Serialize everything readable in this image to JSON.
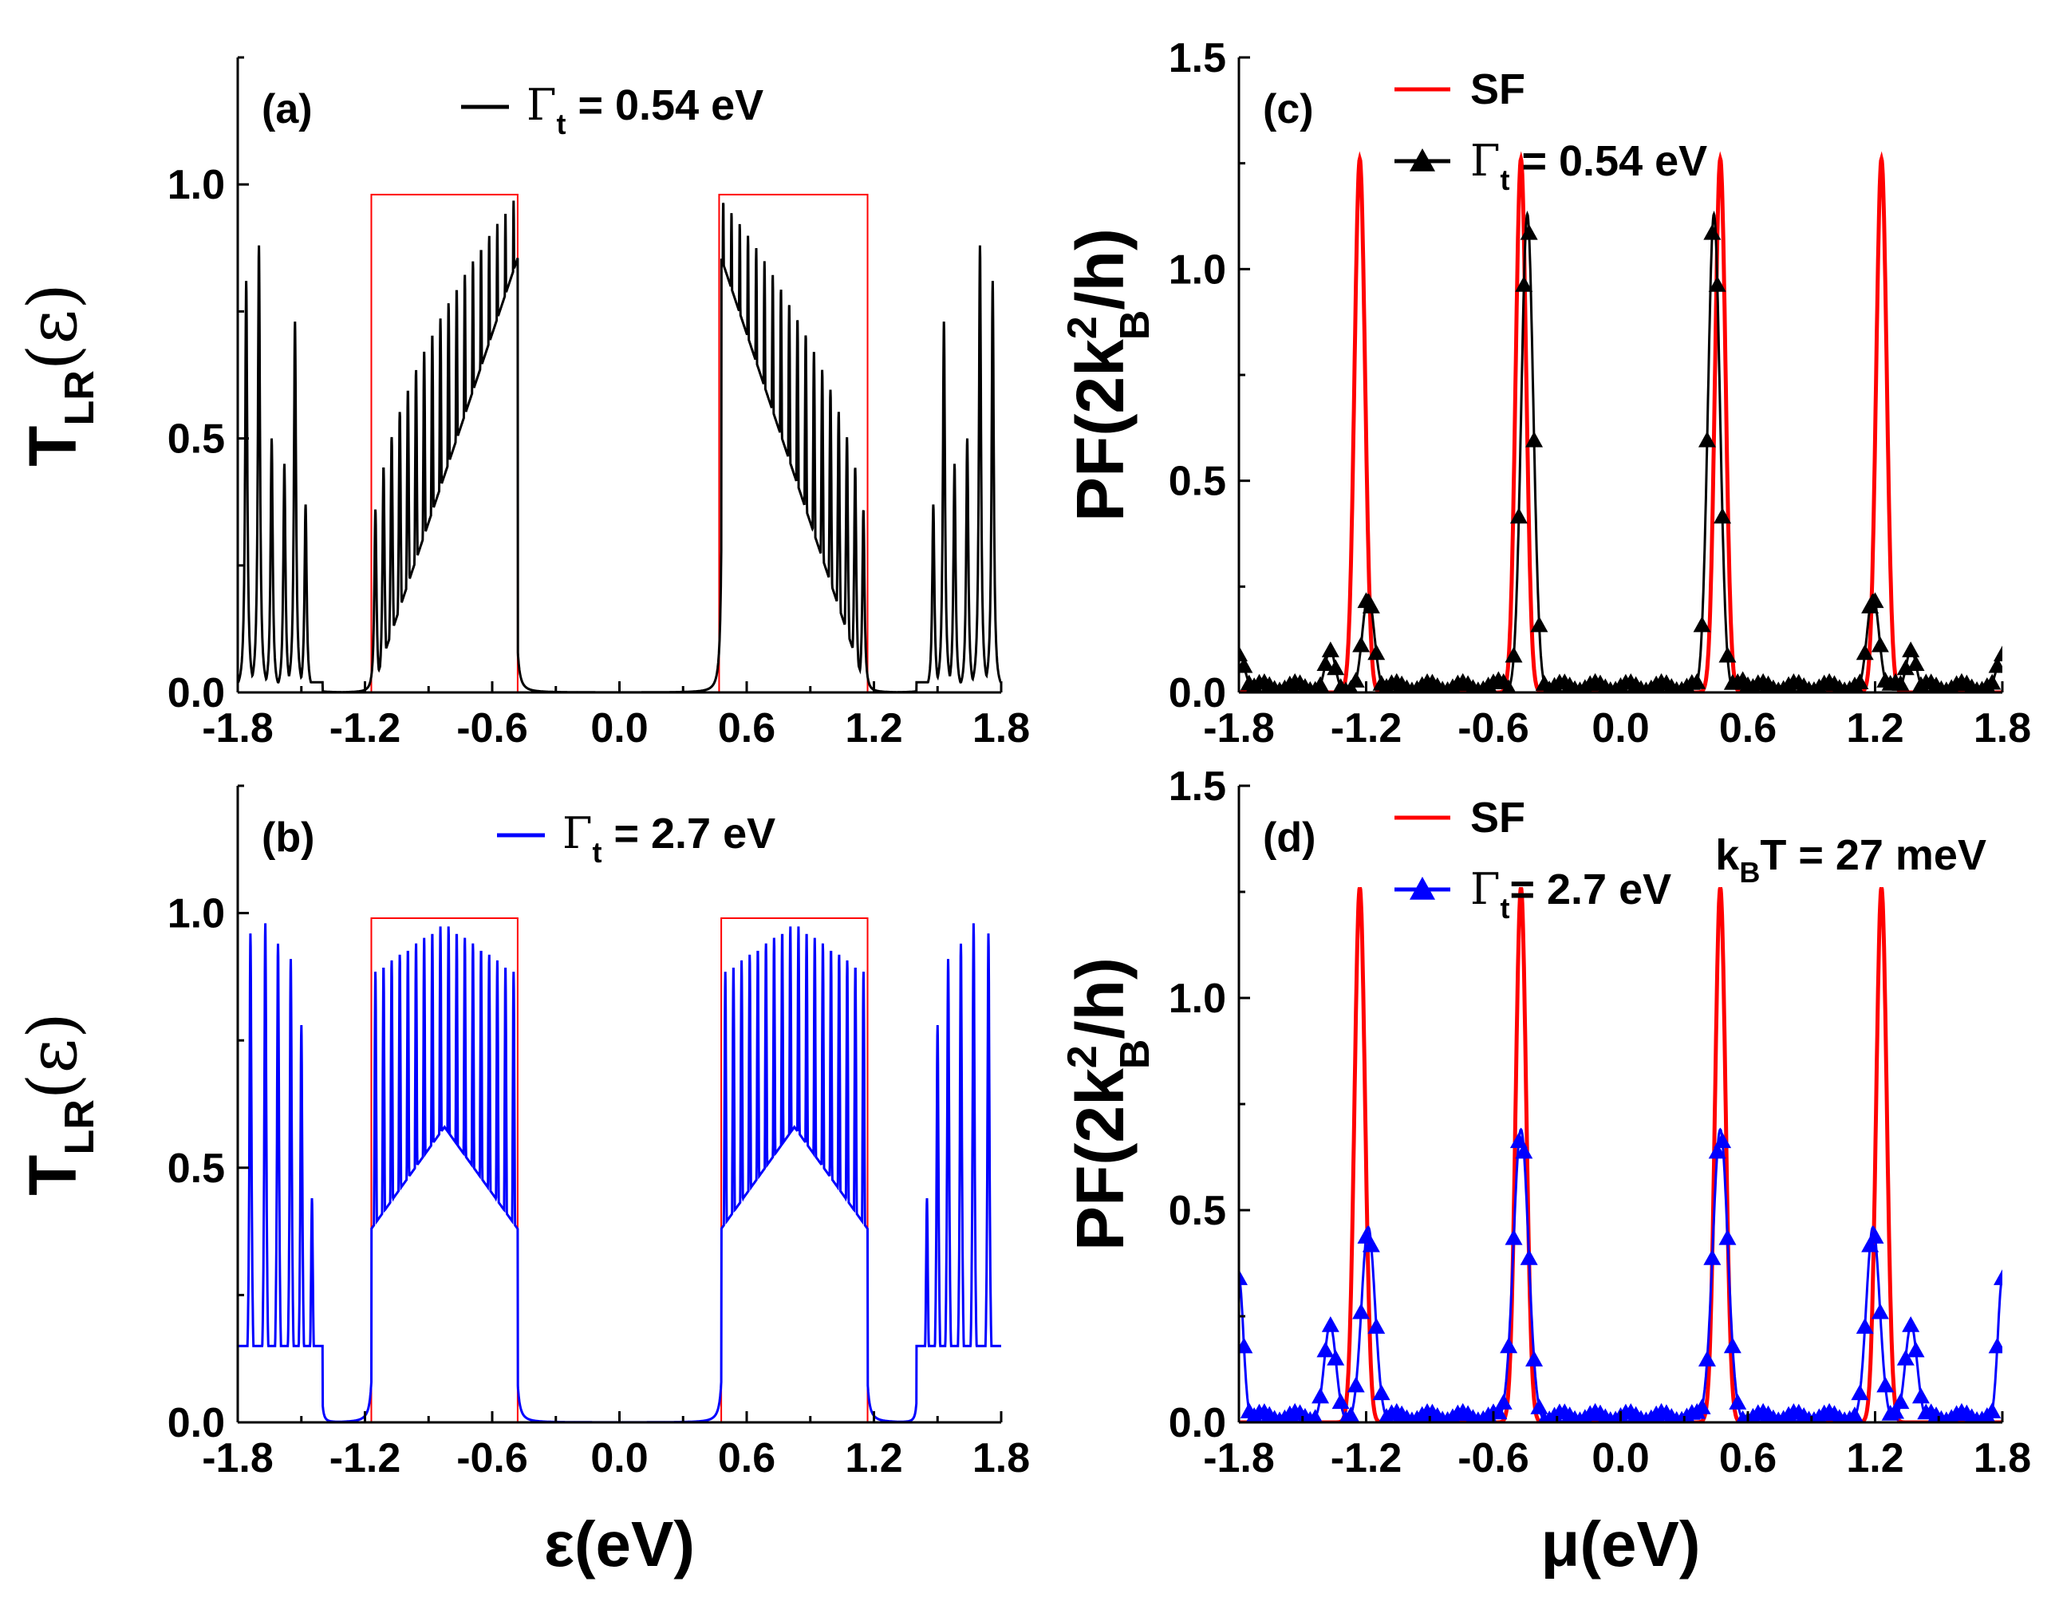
{
  "chart_data": [
    {
      "id": "a",
      "type": "line",
      "panel_label": "(a)",
      "xlim": [
        -1.8,
        1.8
      ],
      "ylim": [
        0,
        1.25
      ],
      "xticks": [
        "-1.8",
        "-1.2",
        "-0.6",
        "0.0",
        "0.6",
        "1.2",
        "1.8"
      ],
      "yticks": [
        "0.0",
        "0.5",
        "1.0"
      ],
      "ylabel_main": "T",
      "ylabel_sub": "LR",
      "ylabel_arg": "(ε)",
      "legend": [
        {
          "sym": "Γ",
          "sub": "t",
          "text": " = 0.54 eV",
          "color": "#000000"
        }
      ],
      "highlight_boxes": [
        {
          "x": [
            -1.17,
            -0.48
          ],
          "y": [
            0,
            0.98
          ]
        },
        {
          "x": [
            0.47,
            1.17
          ],
          "y": [
            0,
            0.98
          ]
        }
      ],
      "series": [
        {
          "name": "Γt = 0.54 eV",
          "color": "#000000",
          "outer_peaks": [
            {
              "x": -1.76,
              "y": 0.81
            },
            {
              "x": -1.7,
              "y": 0.88
            },
            {
              "x": -1.64,
              "y": 0.5
            },
            {
              "x": -1.58,
              "y": 0.45
            },
            {
              "x": -1.53,
              "y": 0.73
            },
            {
              "x": -1.48,
              "y": 0.37
            },
            {
              "x": 1.48,
              "y": 0.37
            },
            {
              "x": 1.53,
              "y": 0.73
            },
            {
              "x": 1.58,
              "y": 0.45
            },
            {
              "x": 1.64,
              "y": 0.5
            },
            {
              "x": 1.7,
              "y": 0.88
            },
            {
              "x": 1.76,
              "y": 0.81
            }
          ],
          "band_envelope": "high"
        }
      ]
    },
    {
      "id": "b",
      "type": "line",
      "panel_label": "(b)",
      "xlim": [
        -1.8,
        1.8
      ],
      "ylim": [
        0,
        1.25
      ],
      "xticks": [
        "-1.8",
        "-1.2",
        "-0.6",
        "0.0",
        "0.6",
        "1.2",
        "1.8"
      ],
      "yticks": [
        "0.0",
        "0.5",
        "1.0"
      ],
      "ylabel_main": "T",
      "ylabel_sub": "LR",
      "ylabel_arg": "(ε)",
      "xlabel": "ε(eV)",
      "legend": [
        {
          "sym": "Γ",
          "sub": "t",
          "text": " = 2.7 eV",
          "color": "#0000ff"
        }
      ],
      "highlight_boxes": [
        {
          "x": [
            -1.17,
            -0.48
          ],
          "y": [
            0,
            0.99
          ]
        },
        {
          "x": [
            0.48,
            1.17
          ],
          "y": [
            0,
            0.99
          ]
        }
      ],
      "series": [
        {
          "name": "Γt = 2.7 eV",
          "color": "#0000ff",
          "outer_peaks": [
            {
              "x": -1.74,
              "y": 0.96
            },
            {
              "x": -1.67,
              "y": 0.98
            },
            {
              "x": -1.61,
              "y": 0.94
            },
            {
              "x": -1.55,
              "y": 0.91
            },
            {
              "x": -1.5,
              "y": 0.78
            },
            {
              "x": -1.45,
              "y": 0.44
            },
            {
              "x": -1.41,
              "y": 0.14
            },
            {
              "x": 1.41,
              "y": 0.14
            },
            {
              "x": 1.45,
              "y": 0.44
            },
            {
              "x": 1.5,
              "y": 0.78
            },
            {
              "x": 1.55,
              "y": 0.91
            },
            {
              "x": 1.61,
              "y": 0.94
            },
            {
              "x": 1.67,
              "y": 0.98
            },
            {
              "x": 1.74,
              "y": 0.96
            }
          ],
          "band_envelope": "mid"
        }
      ]
    },
    {
      "id": "c",
      "type": "line",
      "panel_label": "(c)",
      "xlim": [
        -1.8,
        1.8
      ],
      "ylim": [
        0,
        1.5
      ],
      "xticks": [
        "-1.8",
        "-1.2",
        "-0.6",
        "0.0",
        "0.6",
        "1.2",
        "1.8"
      ],
      "yticks": [
        "0.0",
        "0.5",
        "1.0",
        "1.5"
      ],
      "ylabel_main": "PF(2k",
      "ylabel_sub": "B",
      "ylabel_sup": "2",
      "ylabel_tail": "/h)",
      "legend": [
        {
          "text": "SF",
          "color": "#ff0000",
          "marker": "line"
        },
        {
          "sym": "Γ",
          "sub": "t",
          "text": " = 0.54 eV",
          "color": "#000000",
          "marker": "triangle"
        }
      ],
      "series": [
        {
          "name": "SF",
          "color": "#ff0000",
          "peaks": [
            {
              "x": -1.23,
              "y": 1.26,
              "w": 0.035
            },
            {
              "x": -0.47,
              "y": 1.26,
              "w": 0.035
            },
            {
              "x": 0.47,
              "y": 1.26,
              "w": 0.035
            },
            {
              "x": 1.23,
              "y": 1.26,
              "w": 0.035
            }
          ]
        },
        {
          "name": "Γt = 0.54 eV",
          "color": "#000000",
          "marker": "triangle",
          "peaks": [
            {
              "x": -1.8,
              "y": 0.09,
              "w": 0.04
            },
            {
              "x": -1.37,
              "y": 0.1,
              "w": 0.035
            },
            {
              "x": -1.19,
              "y": 0.23,
              "w": 0.04
            },
            {
              "x": -0.57,
              "y": 0.03,
              "w": 0.04
            },
            {
              "x": -0.44,
              "y": 1.13,
              "w": 0.04
            },
            {
              "x": 0.44,
              "y": 1.13,
              "w": 0.04
            },
            {
              "x": 0.57,
              "y": 0.03,
              "w": 0.04
            },
            {
              "x": 1.19,
              "y": 0.23,
              "w": 0.04
            },
            {
              "x": 1.37,
              "y": 0.1,
              "w": 0.035
            },
            {
              "x": 1.8,
              "y": 0.09,
              "w": 0.04
            }
          ]
        }
      ]
    },
    {
      "id": "d",
      "type": "line",
      "panel_label": "(d)",
      "xlim": [
        -1.8,
        1.8
      ],
      "ylim": [
        0,
        1.5
      ],
      "xticks": [
        "-1.8",
        "-1.2",
        "-0.6",
        "0.0",
        "0.6",
        "1.2",
        "1.8"
      ],
      "yticks": [
        "0.0",
        "0.5",
        "1.0",
        "1.5"
      ],
      "ylabel_main": "PF(2k",
      "ylabel_sub": "B",
      "ylabel_sup": "2",
      "ylabel_tail": "/h)",
      "xlabel": "μ(eV)",
      "annotation": {
        "main": "k",
        "sub": "B",
        "tail": "T = 27 meV"
      },
      "legend": [
        {
          "text": "SF",
          "color": "#ff0000",
          "marker": "line"
        },
        {
          "sym": "Γ",
          "sub": "t",
          "text": "= 2.7 eV",
          "color": "#0000ff",
          "marker": "triangle"
        }
      ],
      "series": [
        {
          "name": "SF",
          "color": "#ff0000",
          "peaks": [
            {
              "x": -1.23,
              "y": 1.26,
              "w": 0.035
            },
            {
              "x": -0.47,
              "y": 1.26,
              "w": 0.035
            },
            {
              "x": 0.47,
              "y": 1.26,
              "w": 0.035
            },
            {
              "x": 1.23,
              "y": 1.26,
              "w": 0.035
            }
          ]
        },
        {
          "name": "Γt = 2.7 eV",
          "color": "#0000ff",
          "marker": "triangle",
          "peaks": [
            {
              "x": -1.8,
              "y": 0.34,
              "w": 0.03
            },
            {
              "x": -1.37,
              "y": 0.23,
              "w": 0.04
            },
            {
              "x": -1.19,
              "y": 0.46,
              "w": 0.045
            },
            {
              "x": -0.47,
              "y": 0.69,
              "w": 0.05
            },
            {
              "x": 0.47,
              "y": 0.69,
              "w": 0.05
            },
            {
              "x": 1.19,
              "y": 0.46,
              "w": 0.045
            },
            {
              "x": 1.37,
              "y": 0.23,
              "w": 0.04
            },
            {
              "x": 1.8,
              "y": 0.34,
              "w": 0.03
            }
          ]
        }
      ]
    }
  ]
}
